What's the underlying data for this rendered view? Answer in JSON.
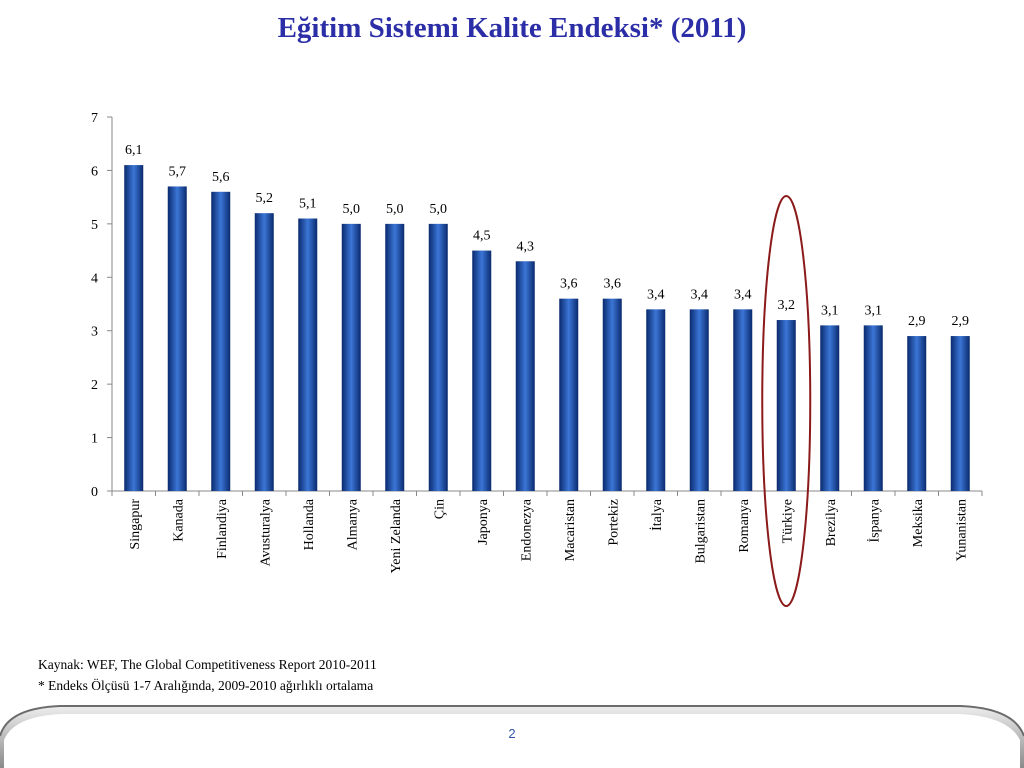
{
  "slide": {
    "title": "Eğitim Sistemi Kalite Endeksi* (2011)",
    "source_note": "Kaynak: WEF, The Global Competitiveness Report 2010-2011",
    "scale_note": "* Endeks Ölçüsü 1-7 Aralığında, 2009-2010 ağırlıklı ortalama",
    "page_number": "2"
  },
  "colors": {
    "bar_dark": "#0a2a6e",
    "bar_light": "#3b76d6",
    "highlight_ellipse": "#8b1a1a",
    "title": "#2b2ea6"
  },
  "chart_data": {
    "type": "bar",
    "title": "Eğitim Sistemi Kalite Endeksi* (2011)",
    "xlabel": "",
    "ylabel": "",
    "ylim": [
      0,
      7
    ],
    "yticks": [
      "0",
      "1",
      "2",
      "3",
      "4",
      "5",
      "6",
      "7"
    ],
    "grid": false,
    "categories": [
      "Singapur",
      "Kanada",
      "Finlandiya",
      "Avusturalya",
      "Hollanda",
      "Almanya",
      "Yeni Zelanda",
      "Çin",
      "Japonya",
      "Endonezya",
      "Macaristan",
      "Portekiz",
      "İtalya",
      "Bulgaristan",
      "Romanya",
      "Türkiye",
      "Brezilya",
      "İspanya",
      "Meksika",
      "Yunanistan"
    ],
    "values": [
      6.1,
      5.7,
      5.6,
      5.2,
      5.1,
      5.0,
      5.0,
      5.0,
      4.5,
      4.3,
      3.6,
      3.6,
      3.4,
      3.4,
      3.4,
      3.2,
      3.1,
      3.1,
      2.9,
      2.9
    ],
    "data_labels": [
      "6,1",
      "5,7",
      "5,6",
      "5,2",
      "5,1",
      "5,0",
      "5,0",
      "5,0",
      "4,5",
      "4,3",
      "3,6",
      "3,6",
      "3,4",
      "3,4",
      "3,4",
      "3,2",
      "3,1",
      "3,1",
      "2,9",
      "2,9"
    ],
    "highlighted_category": "Türkiye"
  }
}
